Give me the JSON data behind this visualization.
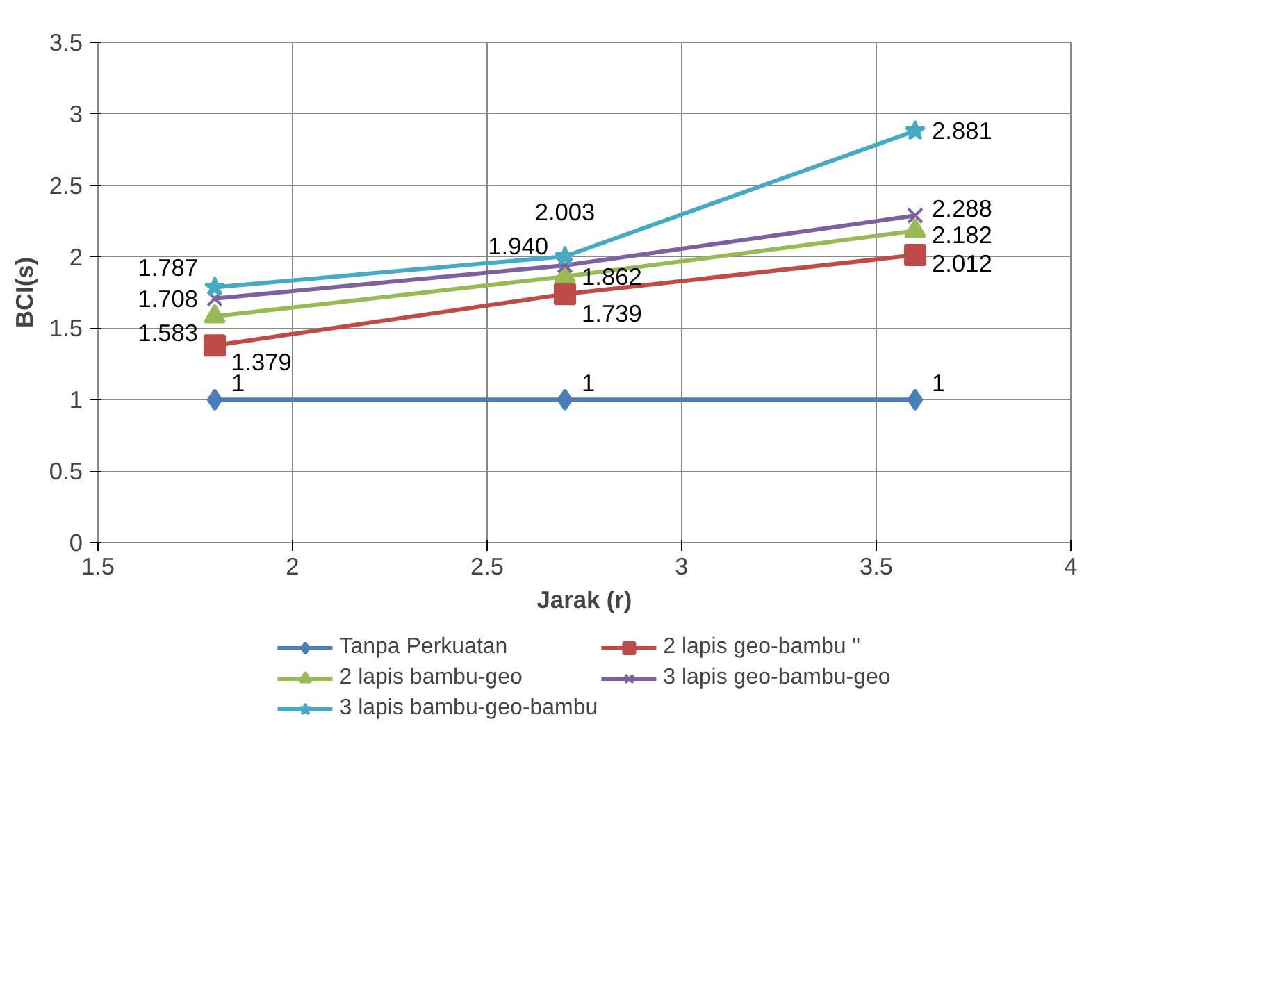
{
  "chart_data": {
    "type": "line",
    "xlabel": "Jarak (r)",
    "ylabel": "BCI(s)",
    "x": [
      1.8,
      2.7,
      3.6
    ],
    "xlim": [
      1.5,
      4
    ],
    "xticks": [
      1.5,
      2,
      2.5,
      3,
      3.5,
      4
    ],
    "ylim": [
      0,
      3.5
    ],
    "yticks": [
      0,
      0.5,
      1,
      1.5,
      2,
      2.5,
      3,
      3.5
    ],
    "grid": true,
    "legend": "bottom",
    "series": [
      {
        "name": "Tanpa Perkuatan",
        "color": "#4a7ebb",
        "marker": "diamond",
        "values": [
          1,
          1,
          1
        ],
        "value_labels": [
          "1",
          "1",
          "1"
        ]
      },
      {
        "name": "2 lapis geo-bambu \"",
        "color": "#be4b48",
        "marker": "square",
        "values": [
          1.379,
          1.739,
          2.012
        ],
        "value_labels": [
          "1.379",
          "1.739",
          "2.012"
        ]
      },
      {
        "name": "2 lapis bambu-geo",
        "color": "#98b954",
        "marker": "triangle",
        "values": [
          1.583,
          1.862,
          2.182
        ],
        "value_labels": [
          "1.583",
          "1.862",
          "2.182"
        ]
      },
      {
        "name": "3 lapis geo-bambu-geo",
        "color": "#7d60a0",
        "marker": "cross",
        "values": [
          1.708,
          1.94,
          2.288
        ],
        "value_labels": [
          "1.708",
          "1.940",
          "2.288"
        ]
      },
      {
        "name": "3 lapis bambu-geo-bambu",
        "color": "#46aac5",
        "marker": "star",
        "values": [
          1.787,
          2.003,
          2.881
        ],
        "value_labels": [
          "1.787",
          "2.003",
          "2.881"
        ]
      }
    ]
  }
}
